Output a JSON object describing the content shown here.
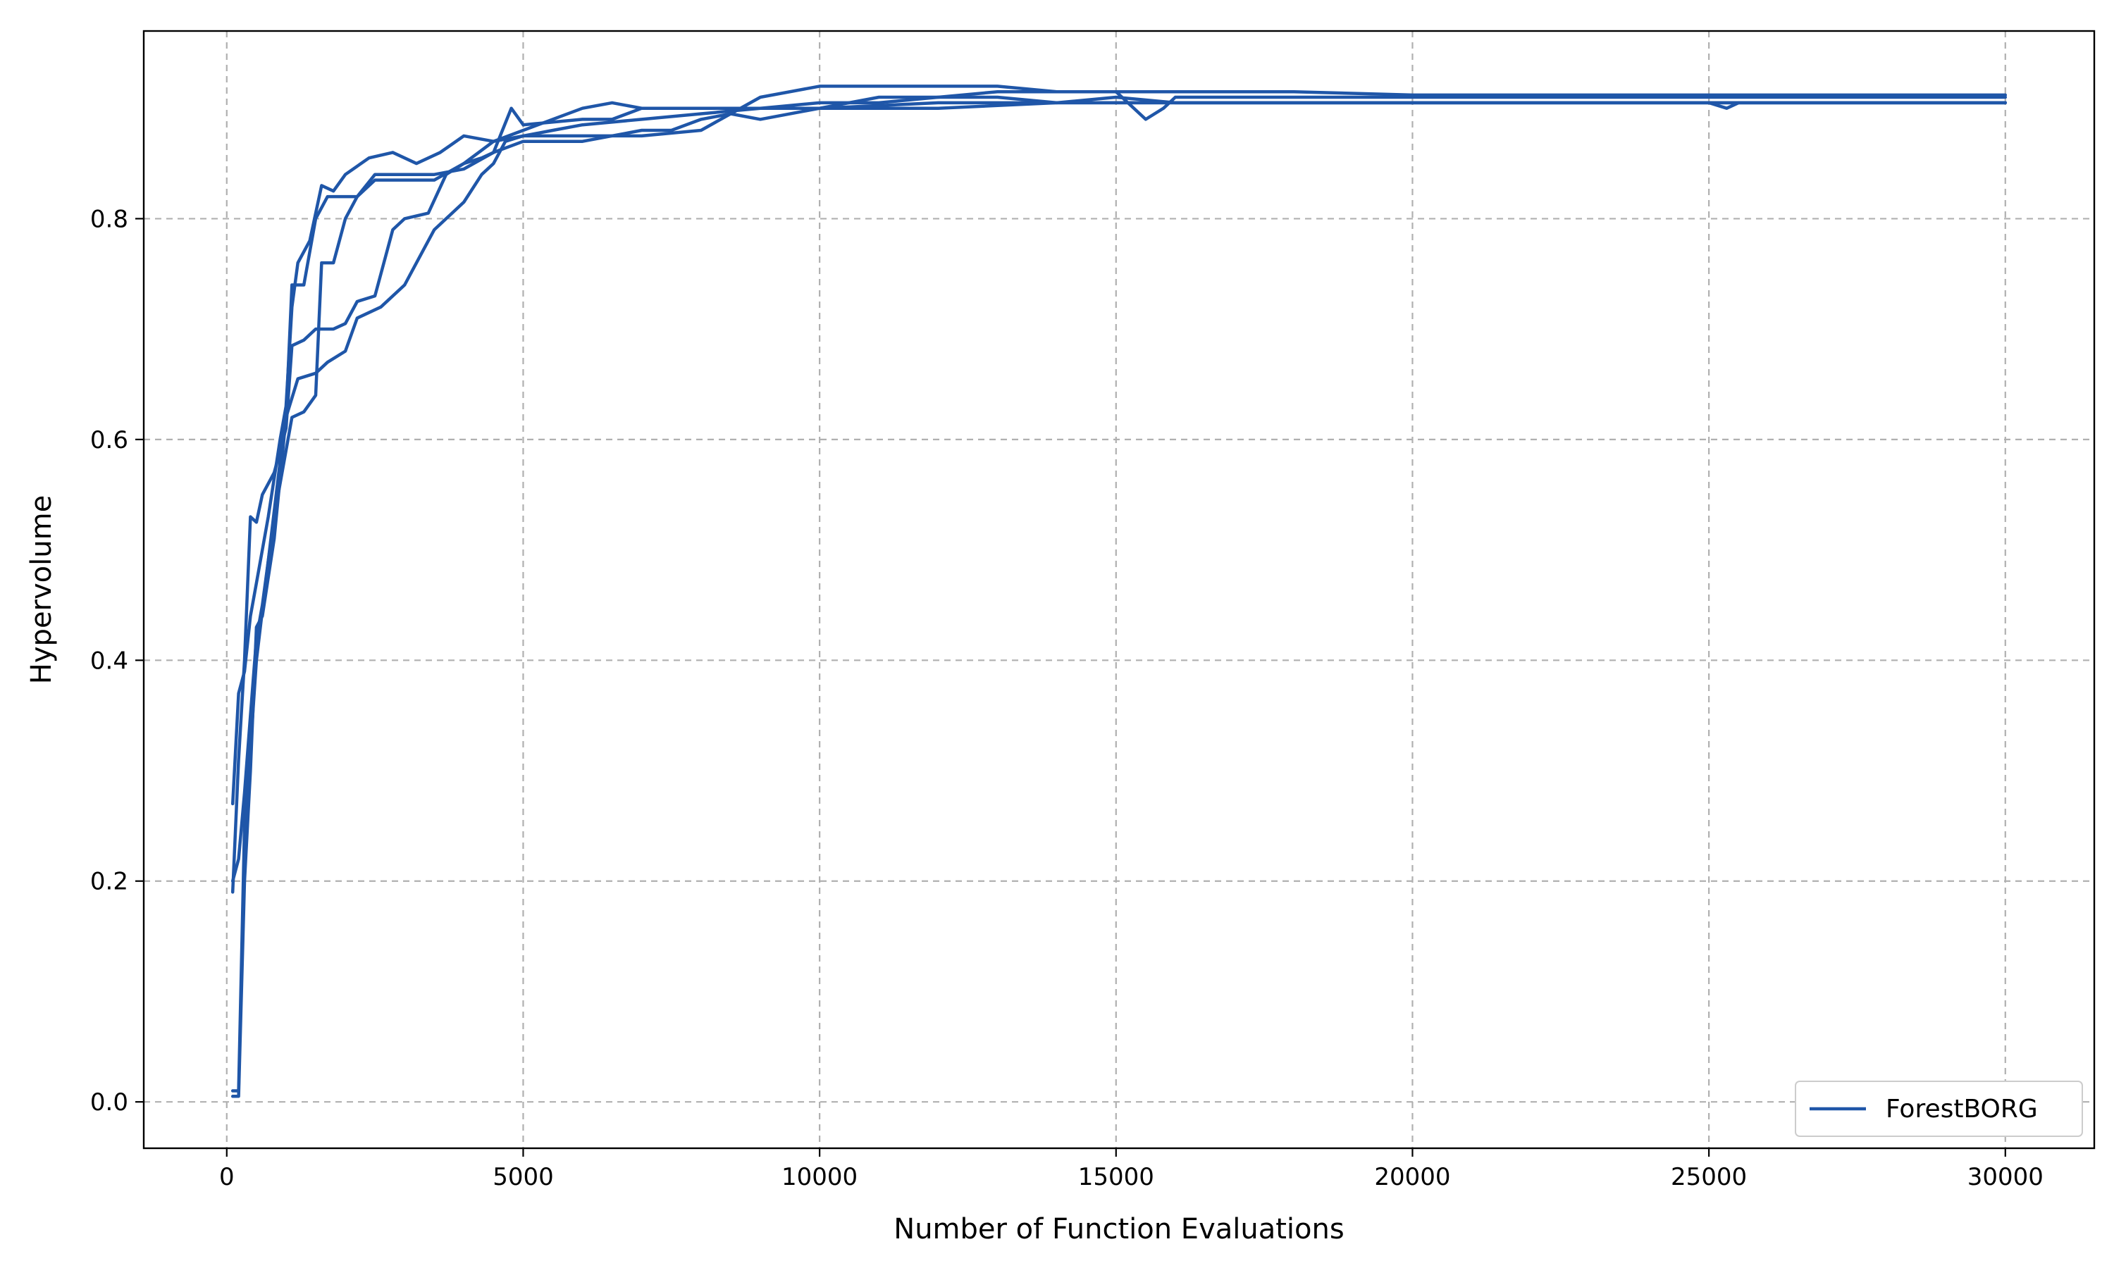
{
  "chart_data": {
    "type": "line",
    "title": "",
    "xlabel": "Number of Function Evaluations",
    "ylabel": "Hypervolume",
    "xlim": [
      -1400,
      31500
    ],
    "ylim": [
      -0.042,
      0.97
    ],
    "xticks": [
      0,
      5000,
      10000,
      15000,
      20000,
      25000,
      30000
    ],
    "xtick_labels": [
      "0",
      "5000",
      "10000",
      "15000",
      "20000",
      "25000",
      "30000"
    ],
    "yticks": [
      0.0,
      0.2,
      0.4,
      0.6,
      0.8
    ],
    "ytick_labels": [
      "0.0",
      "0.2",
      "0.4",
      "0.6",
      "0.8"
    ],
    "grid": true,
    "legend": {
      "position": "lower-right",
      "entries": [
        {
          "label": "ForestBORG",
          "color": "#1f56a8"
        }
      ]
    },
    "series_color": "#1f56a8",
    "series": [
      {
        "values": [
          [
            100,
            0.19
          ],
          [
            200,
            0.31
          ],
          [
            300,
            0.4
          ],
          [
            400,
            0.53
          ],
          [
            500,
            0.525
          ],
          [
            600,
            0.55
          ],
          [
            800,
            0.57
          ],
          [
            1000,
            0.61
          ],
          [
            1100,
            0.685
          ],
          [
            1300,
            0.69
          ],
          [
            1500,
            0.7
          ],
          [
            1800,
            0.7
          ],
          [
            2000,
            0.705
          ],
          [
            2200,
            0.725
          ],
          [
            2500,
            0.73
          ],
          [
            2800,
            0.79
          ],
          [
            3000,
            0.8
          ],
          [
            3400,
            0.805
          ],
          [
            3700,
            0.84
          ],
          [
            4000,
            0.85
          ],
          [
            4300,
            0.855
          ],
          [
            4500,
            0.86
          ],
          [
            4800,
            0.9
          ],
          [
            5000,
            0.885
          ],
          [
            6000,
            0.89
          ],
          [
            6500,
            0.89
          ],
          [
            7000,
            0.9
          ],
          [
            8000,
            0.9
          ],
          [
            9000,
            0.9
          ],
          [
            10000,
            0.9
          ],
          [
            12000,
            0.905
          ],
          [
            14000,
            0.905
          ],
          [
            15000,
            0.91
          ],
          [
            16000,
            0.905
          ],
          [
            18000,
            0.905
          ],
          [
            20000,
            0.905
          ],
          [
            25000,
            0.905
          ],
          [
            30000,
            0.905
          ]
        ]
      },
      {
        "values": [
          [
            100,
            0.27
          ],
          [
            200,
            0.37
          ],
          [
            300,
            0.39
          ],
          [
            400,
            0.44
          ],
          [
            500,
            0.47
          ],
          [
            700,
            0.53
          ],
          [
            900,
            0.6
          ],
          [
            1000,
            0.63
          ],
          [
            1100,
            0.72
          ],
          [
            1200,
            0.76
          ],
          [
            1400,
            0.78
          ],
          [
            1600,
            0.83
          ],
          [
            1800,
            0.825
          ],
          [
            2000,
            0.84
          ],
          [
            2400,
            0.855
          ],
          [
            2800,
            0.86
          ],
          [
            3200,
            0.85
          ],
          [
            3600,
            0.86
          ],
          [
            4000,
            0.875
          ],
          [
            4500,
            0.87
          ],
          [
            5000,
            0.875
          ],
          [
            6000,
            0.875
          ],
          [
            7000,
            0.875
          ],
          [
            8000,
            0.88
          ],
          [
            8500,
            0.895
          ],
          [
            9000,
            0.89
          ],
          [
            10000,
            0.9
          ],
          [
            11000,
            0.91
          ],
          [
            13000,
            0.91
          ],
          [
            14000,
            0.905
          ],
          [
            15000,
            0.905
          ],
          [
            16000,
            0.905
          ],
          [
            17000,
            0.905
          ],
          [
            20000,
            0.905
          ],
          [
            25000,
            0.905
          ],
          [
            30000,
            0.905
          ]
        ]
      },
      {
        "values": [
          [
            100,
            0.005
          ],
          [
            200,
            0.005
          ],
          [
            300,
            0.2
          ],
          [
            400,
            0.3
          ],
          [
            500,
            0.43
          ],
          [
            600,
            0.44
          ],
          [
            800,
            0.51
          ],
          [
            1000,
            0.62
          ],
          [
            1200,
            0.655
          ],
          [
            1500,
            0.66
          ],
          [
            1700,
            0.67
          ],
          [
            2000,
            0.68
          ],
          [
            2200,
            0.71
          ],
          [
            2600,
            0.72
          ],
          [
            3000,
            0.74
          ],
          [
            3300,
            0.77
          ],
          [
            3500,
            0.79
          ],
          [
            4000,
            0.815
          ],
          [
            4300,
            0.84
          ],
          [
            4500,
            0.85
          ],
          [
            4700,
            0.87
          ],
          [
            5000,
            0.875
          ],
          [
            5500,
            0.88
          ],
          [
            6000,
            0.885
          ],
          [
            7000,
            0.89
          ],
          [
            8000,
            0.895
          ],
          [
            9000,
            0.9
          ],
          [
            10000,
            0.905
          ],
          [
            11000,
            0.905
          ],
          [
            12000,
            0.91
          ],
          [
            13000,
            0.915
          ],
          [
            15000,
            0.915
          ],
          [
            15500,
            0.89
          ],
          [
            15800,
            0.9
          ],
          [
            16000,
            0.91
          ],
          [
            18000,
            0.91
          ],
          [
            20000,
            0.91
          ],
          [
            25000,
            0.91
          ],
          [
            30000,
            0.91
          ]
        ]
      },
      {
        "values": [
          [
            100,
            0.01
          ],
          [
            200,
            0.01
          ],
          [
            300,
            0.25
          ],
          [
            400,
            0.32
          ],
          [
            500,
            0.4
          ],
          [
            700,
            0.49
          ],
          [
            900,
            0.58
          ],
          [
            1000,
            0.62
          ],
          [
            1100,
            0.74
          ],
          [
            1300,
            0.74
          ],
          [
            1500,
            0.8
          ],
          [
            1700,
            0.82
          ],
          [
            2000,
            0.82
          ],
          [
            2200,
            0.82
          ],
          [
            2500,
            0.84
          ],
          [
            3000,
            0.84
          ],
          [
            3500,
            0.84
          ],
          [
            4000,
            0.845
          ],
          [
            4500,
            0.86
          ],
          [
            5000,
            0.87
          ],
          [
            6000,
            0.87
          ],
          [
            7000,
            0.88
          ],
          [
            7500,
            0.88
          ],
          [
            8000,
            0.89
          ],
          [
            8500,
            0.895
          ],
          [
            9000,
            0.91
          ],
          [
            10000,
            0.92
          ],
          [
            11000,
            0.92
          ],
          [
            12000,
            0.92
          ],
          [
            13000,
            0.92
          ],
          [
            14000,
            0.915
          ],
          [
            15000,
            0.915
          ],
          [
            17000,
            0.915
          ],
          [
            18000,
            0.915
          ],
          [
            20000,
            0.912
          ],
          [
            25000,
            0.912
          ],
          [
            30000,
            0.912
          ]
        ]
      },
      {
        "values": [
          [
            100,
            0.2
          ],
          [
            200,
            0.22
          ],
          [
            300,
            0.28
          ],
          [
            400,
            0.35
          ],
          [
            500,
            0.42
          ],
          [
            600,
            0.45
          ],
          [
            800,
            0.53
          ],
          [
            1000,
            0.59
          ],
          [
            1100,
            0.62
          ],
          [
            1300,
            0.625
          ],
          [
            1500,
            0.64
          ],
          [
            1600,
            0.76
          ],
          [
            1800,
            0.76
          ],
          [
            2000,
            0.8
          ],
          [
            2200,
            0.82
          ],
          [
            2500,
            0.835
          ],
          [
            3000,
            0.835
          ],
          [
            3500,
            0.835
          ],
          [
            4000,
            0.85
          ],
          [
            4500,
            0.87
          ],
          [
            5000,
            0.88
          ],
          [
            6000,
            0.9
          ],
          [
            6500,
            0.905
          ],
          [
            7000,
            0.9
          ],
          [
            8000,
            0.9
          ],
          [
            9000,
            0.9
          ],
          [
            10000,
            0.9
          ],
          [
            12000,
            0.9
          ],
          [
            14000,
            0.905
          ],
          [
            15000,
            0.905
          ],
          [
            17000,
            0.905
          ],
          [
            18000,
            0.905
          ],
          [
            20000,
            0.905
          ],
          [
            25000,
            0.905
          ],
          [
            25300,
            0.9
          ],
          [
            25500,
            0.905
          ],
          [
            30000,
            0.905
          ]
        ]
      }
    ]
  }
}
